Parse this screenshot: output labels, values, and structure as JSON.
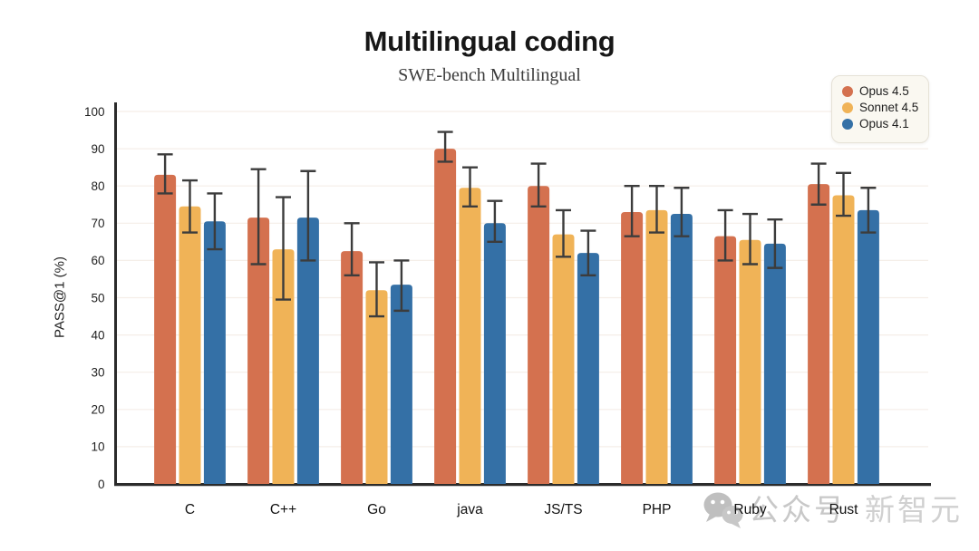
{
  "header": {
    "title": "Multilingual coding",
    "subtitle": "SWE-bench Multilingual"
  },
  "colors": {
    "background": "#ffffff",
    "axis": "#2b2b2b",
    "grid": "#f5eee8",
    "tick_text": "#1f1f1f",
    "category_text": "#111111",
    "error_bar": "#3c3c3c",
    "legend_bg": "#faf8f1",
    "legend_border": "#e6e2d7",
    "watermark_gray": "#c8c8c8"
  },
  "chart_data": {
    "type": "bar",
    "title": "Multilingual coding",
    "subtitle": "SWE-bench Multilingual",
    "xlabel": "",
    "ylabel": "PASS@1 (%)",
    "ylim": [
      0,
      100
    ],
    "ytick_step": 10,
    "grid": "horizontal",
    "legend_position": "top-right",
    "error_bars": true,
    "categories": [
      "C",
      "C++",
      "Go",
      "java",
      "JS/TS",
      "PHP",
      "Ruby",
      "Rust"
    ],
    "series": [
      {
        "name": "Opus 4.5",
        "color": "#d4714f",
        "values": [
          83,
          71.5,
          62.5,
          90,
          80,
          73,
          66.5,
          80.5
        ],
        "error_low": [
          78,
          59,
          56,
          86.5,
          74.5,
          66.5,
          60,
          75
        ],
        "error_high": [
          88.5,
          84.5,
          70,
          94.5,
          86,
          80,
          73.5,
          86
        ]
      },
      {
        "name": "Sonnet 4.5",
        "color": "#f0b357",
        "values": [
          74.5,
          63,
          52,
          79.5,
          67,
          73.5,
          65.5,
          77.5
        ],
        "error_low": [
          67.5,
          49.5,
          45,
          74.5,
          61,
          67.5,
          59,
          72
        ],
        "error_high": [
          81.5,
          77,
          59.5,
          85,
          73.5,
          80,
          72.5,
          83.5
        ]
      },
      {
        "name": "Opus 4.1",
        "color": "#3470a6",
        "values": [
          70.5,
          71.5,
          53.5,
          70,
          62,
          72.5,
          64.5,
          73.5
        ],
        "error_low": [
          63,
          60,
          46.5,
          65,
          56,
          66.5,
          58,
          67.5
        ],
        "error_high": [
          78,
          84,
          60,
          76,
          68,
          79.5,
          71,
          79.5
        ]
      }
    ]
  },
  "watermark": {
    "icon": "wechat-icon",
    "text_primary": "公众号",
    "text_secondary": "新智元"
  }
}
